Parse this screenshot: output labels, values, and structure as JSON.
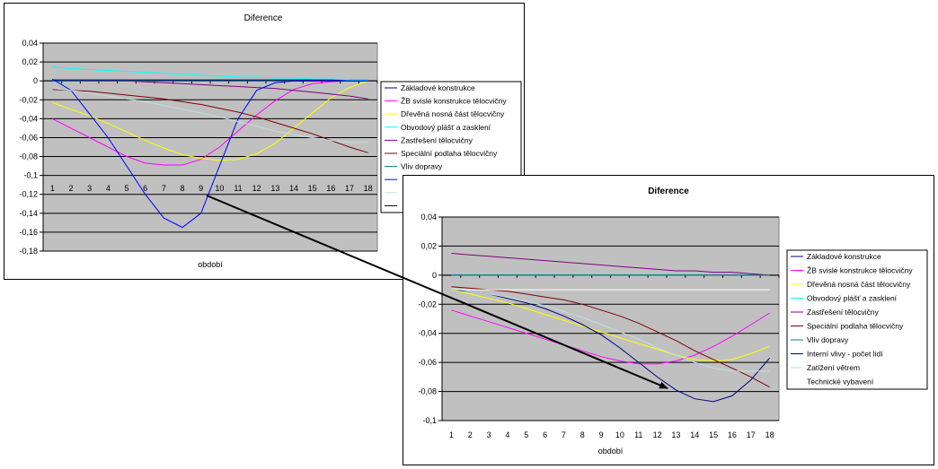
{
  "chart_data": [
    {
      "type": "line",
      "title": "Diference",
      "xlabel": "období",
      "ylabel": "",
      "categories": [
        "1",
        "2",
        "3",
        "4",
        "5",
        "6",
        "7",
        "8",
        "9",
        "10",
        "11",
        "12",
        "13",
        "14",
        "15",
        "16",
        "17",
        "18"
      ],
      "ylim": [
        -0.18,
        0.04
      ],
      "yticks": [
        "0,04",
        "0,02",
        "0",
        "-0,02",
        "-0,04",
        "-0,06",
        "-0,08",
        "-0,1",
        "-0,12",
        "-0,14",
        "-0,16",
        "-0,18"
      ],
      "grid": true,
      "plot_background": "#c0c0c0",
      "legend_position": "right",
      "legend": [
        "Základové konstrukce",
        "ŽB svislé konstrukce tělocvičny",
        "Dřevěná nosná část tělocvičny",
        "Obvodový plášť a zasklení",
        "Zastřešení tělocvičny",
        "Speciální podlaha tělocvičny",
        "Vliv dopravy",
        "",
        "",
        ""
      ],
      "series": [
        {
          "name": "Základové konstrukce",
          "color": "#000080",
          "values": [
            0.001,
            0.001,
            0.001,
            0.001,
            0.001,
            0.001,
            0.001,
            0.001,
            0.001,
            0.001,
            0.001,
            0.001,
            0.001,
            0.001,
            0.001,
            0.001,
            0.001,
            0.001
          ]
        },
        {
          "name": "ŽB svislé konstrukce tělocvičny",
          "color": "#ff00ff",
          "values": [
            -0.04,
            -0.05,
            -0.06,
            -0.07,
            -0.08,
            -0.087,
            -0.089,
            -0.089,
            -0.083,
            -0.07,
            -0.053,
            -0.036,
            -0.021,
            -0.009,
            -0.003,
            -0.001,
            0,
            0
          ]
        },
        {
          "name": "Dřevěná nosná část tělocvičny",
          "color": "#ffff00",
          "values": [
            -0.023,
            -0.03,
            -0.037,
            -0.045,
            -0.054,
            -0.063,
            -0.071,
            -0.078,
            -0.082,
            -0.084,
            -0.083,
            -0.077,
            -0.066,
            -0.05,
            -0.034,
            -0.018,
            -0.007,
            0
          ]
        },
        {
          "name": "Obvodový plášť a zasklení",
          "color": "#00ffff",
          "values": [
            0.015,
            0.013,
            0.012,
            0.011,
            0.01,
            0.009,
            0.008,
            0.007,
            0.006,
            0.005,
            0.004,
            0.004,
            0.003,
            0.003,
            0.002,
            0.002,
            0.001,
            0.001
          ]
        },
        {
          "name": "Zastřešení tělocvičny",
          "color": "#800080",
          "values": [
            0,
            0,
            0,
            0,
            0,
            -0.001,
            -0.002,
            -0.003,
            -0.004,
            -0.005,
            -0.006,
            -0.007,
            -0.008,
            -0.01,
            -0.012,
            -0.014,
            -0.016,
            -0.019
          ]
        },
        {
          "name": "Speciální podlaha tělocvičny",
          "color": "#800000",
          "values": [
            -0.009,
            -0.01,
            -0.011,
            -0.013,
            -0.015,
            -0.017,
            -0.019,
            -0.022,
            -0.025,
            -0.029,
            -0.033,
            -0.038,
            -0.044,
            -0.05,
            -0.056,
            -0.063,
            -0.07,
            -0.076
          ]
        },
        {
          "name": "Vliv dopravy",
          "color": "#008080",
          "values": [
            0,
            0,
            0,
            0,
            0,
            0,
            0,
            0,
            0,
            0,
            0,
            0,
            0,
            0,
            0,
            0,
            0,
            0
          ]
        },
        {
          "name": "",
          "color": "#0000ff",
          "values": [
            0.002,
            -0.01,
            -0.035,
            -0.06,
            -0.09,
            -0.12,
            -0.145,
            -0.155,
            -0.14,
            -0.09,
            -0.04,
            -0.01,
            -0.002,
            0,
            0,
            0,
            0,
            0
          ]
        },
        {
          "name": "",
          "color": "#c0e0e0",
          "values": [
            -0.008,
            -0.01,
            -0.013,
            -0.016,
            -0.019,
            -0.022,
            -0.026,
            -0.03,
            -0.034,
            -0.038,
            -0.043,
            -0.048,
            -0.053,
            -0.057,
            -0.06,
            -0.063,
            -0.065,
            -0.065
          ]
        }
      ]
    },
    {
      "type": "line",
      "title": "Diference",
      "xlabel": "období",
      "ylabel": "",
      "categories": [
        "1",
        "2",
        "3",
        "4",
        "5",
        "6",
        "7",
        "8",
        "9",
        "10",
        "11",
        "12",
        "13",
        "14",
        "15",
        "16",
        "17",
        "18"
      ],
      "ylim": [
        -0.1,
        0.04
      ],
      "yticks": [
        "0,04",
        "0,02",
        "0",
        "-0,02",
        "-0,04",
        "-0,06",
        "-0,08",
        "-0,1"
      ],
      "grid": true,
      "plot_background": "#c0c0c0",
      "legend_position": "right",
      "legend": [
        "Základové konstrukce",
        "ŽB svislé konstrukce tělocvičny",
        "Dřevěná nosná část tělocvičny",
        "Obvodový plášť a zasklení",
        "Zastřešení tělocvičny",
        "Speciální podlaha tělocvičny",
        "Vliv dopravy",
        "Interní vlivy - počet lidí",
        "Zatížení větrem",
        "Technické vybavení"
      ],
      "series": [
        {
          "name": "Základové konstrukce",
          "color": "#000080",
          "values": [
            0,
            0,
            0,
            0,
            0,
            0,
            0,
            0,
            0,
            0,
            0,
            0,
            0,
            0,
            0,
            0,
            0,
            0
          ]
        },
        {
          "name": "ŽB svislé konstrukce tělocvičny",
          "color": "#ff00ff",
          "values": [
            -0.024,
            -0.028,
            -0.032,
            -0.036,
            -0.04,
            -0.044,
            -0.048,
            -0.052,
            -0.056,
            -0.059,
            -0.061,
            -0.061,
            -0.059,
            -0.055,
            -0.049,
            -0.042,
            -0.034,
            -0.026
          ]
        },
        {
          "name": "Dřevěná nosná část tělocvičny",
          "color": "#ffff00",
          "values": [
            -0.01,
            -0.013,
            -0.016,
            -0.019,
            -0.023,
            -0.027,
            -0.031,
            -0.035,
            -0.039,
            -0.043,
            -0.047,
            -0.051,
            -0.055,
            -0.058,
            -0.059,
            -0.058,
            -0.054,
            -0.049
          ]
        },
        {
          "name": "Obvodový plášť a zasklení",
          "color": "#00ffff",
          "values": [
            0,
            0,
            0,
            0,
            0,
            0,
            0,
            0,
            0,
            0,
            0,
            0,
            0,
            0,
            0,
            0,
            0,
            0
          ]
        },
        {
          "name": "Zastřešení tělocvičny",
          "color": "#800080",
          "values": [
            0.015,
            0.014,
            0.013,
            0.012,
            0.011,
            0.01,
            0.009,
            0.008,
            0.007,
            0.006,
            0.005,
            0.004,
            0.003,
            0.003,
            0.002,
            0.002,
            0.001,
            0
          ]
        },
        {
          "name": "Speciální podlaha tělocvičny",
          "color": "#800000",
          "values": [
            -0.008,
            -0.009,
            -0.01,
            -0.011,
            -0.013,
            -0.015,
            -0.017,
            -0.02,
            -0.024,
            -0.028,
            -0.033,
            -0.039,
            -0.045,
            -0.052,
            -0.058,
            -0.064,
            -0.07,
            -0.077
          ]
        },
        {
          "name": "Vliv dopravy",
          "color": "#008080",
          "values": [
            0,
            0,
            0,
            0,
            0,
            0,
            0,
            0,
            0,
            0,
            0,
            0,
            0,
            0,
            0,
            0,
            0,
            0
          ]
        },
        {
          "name": "Interní vlivy - počet lidí",
          "color": "#000080",
          "values": [
            -0.01,
            -0.011,
            -0.013,
            -0.016,
            -0.019,
            -0.023,
            -0.028,
            -0.034,
            -0.041,
            -0.05,
            -0.06,
            -0.07,
            -0.079,
            -0.085,
            -0.087,
            -0.083,
            -0.072,
            -0.057
          ]
        },
        {
          "name": "Zatížení větrem",
          "color": "#c0e0e0",
          "values": [
            -0.009,
            -0.011,
            -0.013,
            -0.015,
            -0.018,
            -0.021,
            -0.025,
            -0.029,
            -0.034,
            -0.039,
            -0.044,
            -0.05,
            -0.055,
            -0.06,
            -0.064,
            -0.066,
            -0.066,
            -0.066
          ]
        },
        {
          "name": "Technické vybavení",
          "color": "#ffffff",
          "values": [
            -0.01,
            -0.01,
            -0.01,
            -0.01,
            -0.01,
            -0.01,
            -0.01,
            -0.01,
            -0.01,
            -0.01,
            -0.01,
            -0.01,
            -0.01,
            -0.01,
            -0.01,
            -0.01,
            -0.01,
            -0.01
          ]
        }
      ]
    }
  ]
}
